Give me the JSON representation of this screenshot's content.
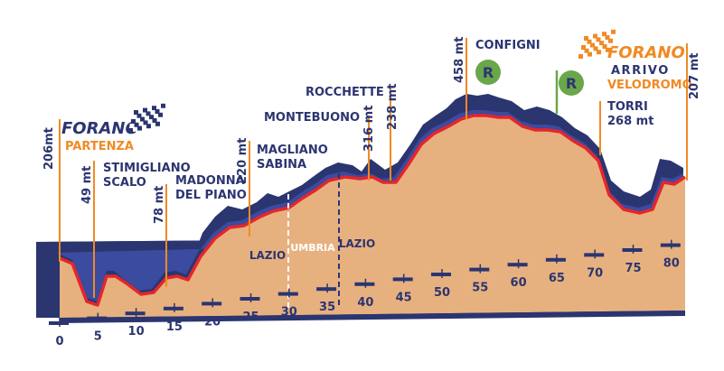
{
  "colors": {
    "dark_navy": "#2b3570",
    "side_blue": "#3a4ba0",
    "top_red": "#e5262a",
    "fill_tan": "#e7b17f",
    "orange": "#f08a24",
    "green": "#6aa64a"
  },
  "start": {
    "brand": "FORANO",
    "sub": "PARTENZA",
    "elevation": "206mt",
    "icon": "checkered-flag-icon"
  },
  "finish": {
    "brand": "FORANO",
    "line1": "ARRIVO",
    "line2": "VELODROMO",
    "elevation": "207 mt",
    "icon": "checkered-flag-icon"
  },
  "waypoints": [
    {
      "km": 5,
      "name_lines": [
        "STIMIGLIANO",
        "SCALO"
      ],
      "elevation": "49 mt"
    },
    {
      "km": 14,
      "name_lines": [
        "MADONNA",
        "DEL PIANO"
      ],
      "elevation": "78 mt"
    },
    {
      "km": 25,
      "name_lines": [
        "MAGLIANO",
        "SABINA"
      ],
      "elevation": "220 mt"
    },
    {
      "km": 40,
      "name_lines": [
        "MONTEBUONO"
      ],
      "elevation": "316 mt"
    },
    {
      "km": 44,
      "name_lines": [
        "ROCCHETTE"
      ],
      "elevation": "238 mt"
    },
    {
      "km": 54,
      "name_lines": [
        "CONFIGNI"
      ],
      "elevation": "458 mt"
    },
    {
      "km": 71,
      "name_lines": [
        "TORRI",
        "268 mt"
      ],
      "elevation": ""
    }
  ],
  "refreshments": [
    {
      "km": 54,
      "label": "R"
    },
    {
      "km": 65,
      "label": "R"
    }
  ],
  "regions": [
    {
      "label": "LAZIO"
    },
    {
      "label": "UMBRIA"
    },
    {
      "label": "LAZIO"
    }
  ],
  "km_ticks": [
    "0",
    "5",
    "10",
    "15",
    "20",
    "25",
    "30",
    "35",
    "40",
    "45",
    "50",
    "55",
    "60",
    "65",
    "70",
    "75",
    "80"
  ]
}
